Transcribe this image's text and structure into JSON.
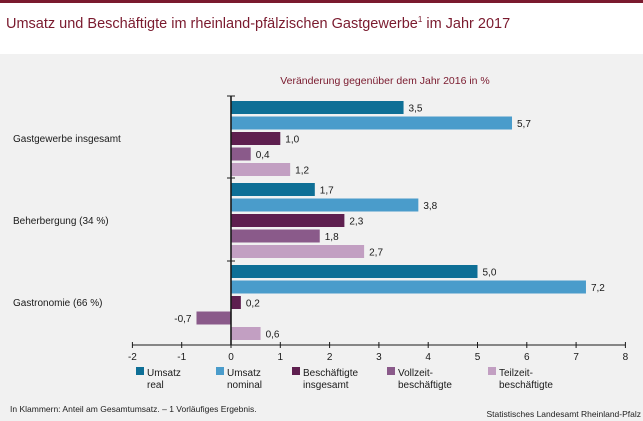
{
  "header": {
    "title": "Umsatz und Beschäftigte im rheinland-pfälzischen Gastgewerbe",
    "title_sup": "1",
    "title_suffix": " im Jahr 2017"
  },
  "footnote": "In Klammern: Anteil am Gesamtumsatz. – 1 Vorläufiges Ergebnis.",
  "source": "Statistisches Landesamt Rheinland-Pfalz",
  "chart_data": {
    "type": "bar",
    "orientation": "horizontal",
    "subtitle": "Veränderung gegenüber dem Jahr 2016 in %",
    "categories": [
      "Gastgewerbe insgesamt",
      "Beherbergung (34 %)",
      "Gastronomie (66 %)"
    ],
    "series": [
      {
        "name": "Umsatz real",
        "legend_lines": [
          "Umsatz",
          "real"
        ],
        "color": "#0e6f96",
        "values": [
          3.5,
          1.7,
          5.0
        ],
        "labels": [
          "3,5",
          "1,7",
          "5,0"
        ]
      },
      {
        "name": "Umsatz nominal",
        "legend_lines": [
          "Umsatz",
          "nominal"
        ],
        "color": "#4a9ccb",
        "values": [
          5.7,
          3.8,
          7.2
        ],
        "labels": [
          "5,7",
          "3,8",
          "7,2"
        ]
      },
      {
        "name": "Beschäftigte insgesamt",
        "legend_lines": [
          "Beschäftigte",
          "insgesamt"
        ],
        "color": "#5e1f4f",
        "values": [
          1.0,
          2.3,
          0.2
        ],
        "labels": [
          "1,0",
          "2,3",
          "0,2"
        ]
      },
      {
        "name": "Vollzeitbeschäftigte",
        "legend_lines": [
          "Vollzeit-",
          "beschäftigte"
        ],
        "color": "#8a5a8a",
        "values": [
          0.4,
          1.8,
          -0.7
        ],
        "labels": [
          "0,4",
          "1,8",
          "-0,7"
        ]
      },
      {
        "name": "Teilzeitbeschäftigte",
        "legend_lines": [
          "Teilzeit-",
          "beschäftigte"
        ],
        "color": "#c29fc2",
        "values": [
          1.2,
          2.7,
          0.6
        ],
        "labels": [
          "1,2",
          "2,7",
          "0,6"
        ]
      }
    ],
    "xlim": [
      -2,
      8
    ],
    "xticks": [
      -2,
      -1,
      0,
      1,
      2,
      3,
      4,
      5,
      6,
      7,
      8
    ],
    "grid": false,
    "legend": "bottom"
  }
}
